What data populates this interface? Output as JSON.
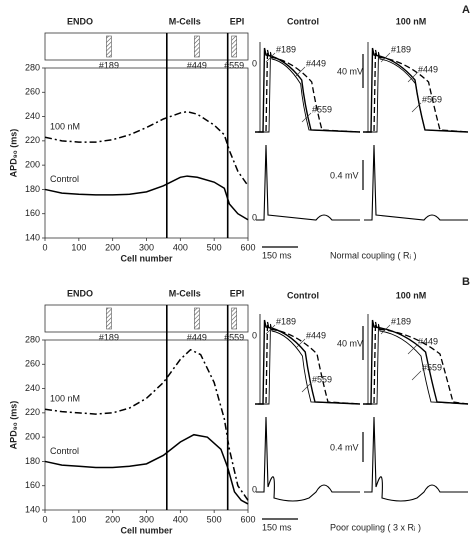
{
  "chart_data": [
    {
      "type": "line",
      "panel": "A",
      "xlabel": "Cell number",
      "ylabel": "APD₉₀ (ms)",
      "xlim": [
        0,
        600
      ],
      "xticks": [
        0,
        100,
        200,
        300,
        400,
        500,
        600
      ],
      "ylim": [
        140,
        280
      ],
      "yticks": [
        140,
        160,
        180,
        200,
        220,
        240,
        260,
        280
      ],
      "regions": [
        "ENDO",
        "M-Cells",
        "EPI"
      ],
      "boundaries": [
        360,
        540
      ],
      "marked_cells": [
        {
          "value": 189,
          "label": "#189"
        },
        {
          "value": 449,
          "label": "#449"
        },
        {
          "value": 559,
          "label": "#559"
        }
      ],
      "series": [
        {
          "name": "100 nM",
          "color": "#000000",
          "style": "dash-dot",
          "x": [
            0,
            50,
            100,
            150,
            200,
            250,
            300,
            350,
            400,
            420,
            450,
            500,
            530,
            545,
            570,
            600
          ],
          "values": [
            223,
            220,
            219,
            219,
            221,
            225,
            231,
            238,
            243,
            244,
            242,
            233,
            225,
            212,
            195,
            183
          ]
        },
        {
          "name": "Control",
          "color": "#000000",
          "style": "solid",
          "x": [
            0,
            50,
            100,
            150,
            200,
            250,
            300,
            350,
            400,
            420,
            450,
            500,
            530,
            545,
            570,
            600
          ],
          "values": [
            180,
            177,
            176,
            175.5,
            175.5,
            176,
            178,
            183,
            190,
            191,
            190,
            186,
            181,
            168,
            160,
            155
          ]
        }
      ],
      "traces": {
        "columns": [
          "Control",
          "100 nM"
        ],
        "scale_v": "40 mV",
        "scale_ecg": "0.4 mV",
        "zero": "0",
        "scale_t": "150 ms",
        "coupling": "Normal coupling ( Rᵢ )"
      }
    },
    {
      "type": "line",
      "panel": "B",
      "xlabel": "Cell number",
      "ylabel": "APD₉₀ (ms)",
      "xlim": [
        0,
        600
      ],
      "xticks": [
        0,
        100,
        200,
        300,
        400,
        500,
        600
      ],
      "ylim": [
        140,
        280
      ],
      "yticks": [
        140,
        160,
        180,
        200,
        220,
        240,
        260,
        280
      ],
      "regions": [
        "ENDO",
        "M-Cells",
        "EPI"
      ],
      "boundaries": [
        360,
        540
      ],
      "marked_cells": [
        {
          "value": 189,
          "label": "#189"
        },
        {
          "value": 449,
          "label": "#449"
        },
        {
          "value": 559,
          "label": "#559"
        }
      ],
      "series": [
        {
          "name": "100 nM",
          "color": "#000000",
          "style": "dash-dot",
          "x": [
            0,
            50,
            100,
            150,
            200,
            250,
            300,
            350,
            400,
            430,
            460,
            500,
            530,
            545,
            570,
            600
          ],
          "values": [
            223,
            221,
            220,
            219,
            220,
            224,
            232,
            245,
            264,
            272,
            268,
            245,
            215,
            190,
            160,
            148
          ]
        },
        {
          "name": "Control",
          "color": "#000000",
          "style": "solid",
          "x": [
            0,
            50,
            100,
            150,
            200,
            250,
            300,
            350,
            400,
            440,
            480,
            520,
            540,
            560,
            580,
            600
          ],
          "values": [
            180,
            177,
            176,
            175,
            175,
            176,
            178,
            185,
            196,
            202,
            200,
            190,
            175,
            155,
            148,
            145
          ]
        }
      ],
      "traces": {
        "columns": [
          "Control",
          "100 nM"
        ],
        "scale_v": "40 mV",
        "scale_ecg": "0.4 mV",
        "zero": "0",
        "scale_t": "150 ms",
        "coupling": "Poor coupling ( 3 x Rᵢ )"
      }
    }
  ]
}
